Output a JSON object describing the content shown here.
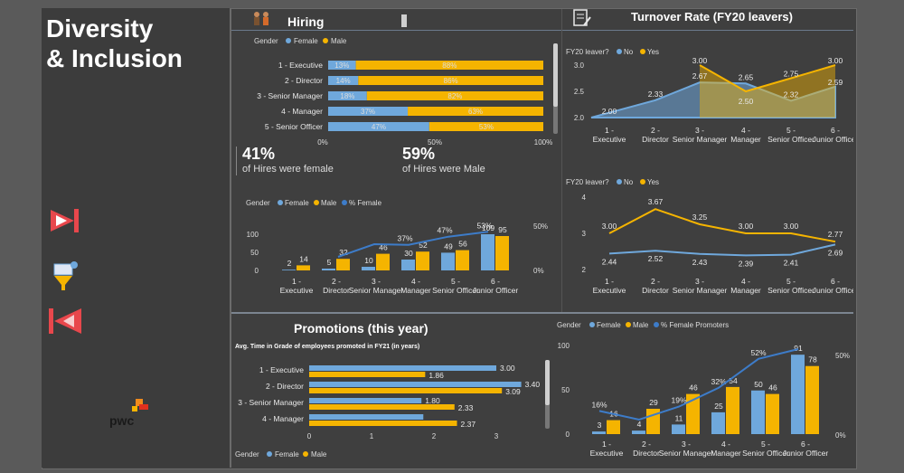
{
  "colors": {
    "female": "#6fa8dc",
    "male": "#f5b400",
    "line": "#3d7cc9",
    "yes": "#f5b400",
    "no": "#6fa8dc"
  },
  "header": {
    "title_line1": "Diversity",
    "title_line2": "& Inclusion"
  },
  "nav": {
    "play_icon": "play-next-icon",
    "filter_icon": "filter-icon",
    "back_icon": "back-icon",
    "logo": "pwc-logo",
    "logo_text": "pwc"
  },
  "hiring": {
    "title": "Hiring",
    "legend_title": "Gender",
    "legend_female": "Female",
    "legend_male": "Male",
    "female_pct_big": "41%",
    "female_pct_text": "of Hires were female",
    "male_pct_big": "59%",
    "male_pct_text": "of Hires were Male",
    "axis_ticks": [
      "0%",
      "50%",
      "100%"
    ]
  },
  "turnover": {
    "title": "Turnover Rate (FY20 leavers)",
    "legend_title": "FY20 leaver?",
    "legend_no": "No",
    "legend_yes": "Yes"
  },
  "promotions": {
    "title": "Promotions (this year)",
    "avg_title": "Avg. Time in Grade of employees promoted in FY21 (in years)",
    "legend_title": "Gender",
    "legend_female": "Female",
    "legend_male": "Male",
    "legend_pct": "% Female Promoters",
    "hires_legend_pct": "% Female"
  },
  "chart_data": [
    {
      "type": "bar",
      "id": "hiring-stacked",
      "categories": [
        "1 - Executive",
        "2 - Director",
        "3 - Senior Manager",
        "4 - Manager",
        "5 - Senior Officer"
      ],
      "series": [
        {
          "name": "Female",
          "values": [
            13,
            14,
            18,
            37,
            47
          ],
          "labels": [
            "13%",
            "14%",
            "18%",
            "37%",
            "47%"
          ]
        },
        {
          "name": "Male",
          "values": [
            88,
            86,
            82,
            63,
            53
          ],
          "labels": [
            "88%",
            "86%",
            "82%",
            "63%",
            "53%"
          ]
        }
      ]
    },
    {
      "type": "area",
      "id": "turnover-area",
      "categories": [
        "1 - Executive",
        "2 - Director",
        "3 - Senior Manager",
        "4 - Manager",
        "5 - Senior Officer",
        "6 - Junior Officer"
      ],
      "series": [
        {
          "name": "No",
          "values": [
            2.0,
            2.33,
            2.67,
            2.65,
            2.32,
            2.59
          ]
        },
        {
          "name": "Yes",
          "values": [
            null,
            null,
            3.0,
            2.5,
            2.75,
            3.0
          ]
        }
      ],
      "yticks": [
        "3.0",
        "2.5",
        "2.0"
      ],
      "ylim": [
        2.0,
        3.0
      ]
    },
    {
      "type": "bar",
      "id": "hires-bar",
      "categories": [
        "1 - Executive",
        "2 - Director",
        "3 - Senior Manager",
        "4 - Manager",
        "5 - Senior Officer",
        "6 - Junior Officer"
      ],
      "series": [
        {
          "name": "Female",
          "values": [
            2,
            5,
            10,
            30,
            49,
            109
          ]
        },
        {
          "name": "Male",
          "values": [
            14,
            32,
            46,
            52,
            56,
            95
          ]
        },
        {
          "name": "% Female",
          "values": [
            null,
            null,
            null,
            37,
            47,
            53
          ],
          "labels": [
            "",
            "",
            "",
            "37%",
            "47%",
            "53%"
          ]
        }
      ],
      "yticks": [
        "100",
        "50",
        "0"
      ],
      "y2ticks": [
        "50%",
        "0%"
      ],
      "ylim": [
        0,
        120
      ]
    },
    {
      "type": "line",
      "id": "turnover-line",
      "categories": [
        "1 - Executive",
        "2 - Director",
        "3 - Senior Manager",
        "4 - Manager",
        "5 - Senior Officer",
        "6 - Junior Officer"
      ],
      "series": [
        {
          "name": "No",
          "values": [
            2.44,
            2.52,
            2.43,
            2.39,
            2.41,
            2.69
          ],
          "labels": [
            "2.44",
            "2.52",
            "2.43",
            "2.39",
            "2.41",
            "2.69"
          ]
        },
        {
          "name": "Yes",
          "values": [
            3.0,
            3.67,
            3.25,
            3.0,
            3.0,
            2.77
          ],
          "labels": [
            "3.00",
            "3.67",
            "3.25",
            "3.00",
            "3.00",
            "2.77"
          ]
        }
      ],
      "yticks": [
        "4",
        "3",
        "2"
      ],
      "ylim": [
        2,
        4
      ]
    },
    {
      "type": "bar",
      "id": "avg-time",
      "categories": [
        "1 - Executive",
        "2 - Director",
        "3 - Senior Manager",
        "4 - Manager"
      ],
      "series": [
        {
          "name": "Female",
          "values": [
            3.0,
            3.4,
            1.8,
            1.83
          ],
          "labels": [
            "3.00",
            "3.40",
            "1.80",
            ""
          ]
        },
        {
          "name": "Male",
          "values": [
            1.86,
            3.09,
            2.33,
            2.37
          ],
          "labels": [
            "1.86",
            "3.09",
            "2.33",
            "2.37"
          ]
        }
      ],
      "xticks": [
        "0",
        "1",
        "2",
        "3"
      ],
      "xlim": [
        0,
        3.6
      ]
    },
    {
      "type": "bar",
      "id": "promotions-bar",
      "categories": [
        "1 - Executive",
        "2 - Director",
        "3 - Senior Manager",
        "4 - Manager",
        "5 - Senior Officer",
        "6 - Junior Officer"
      ],
      "series": [
        {
          "name": "Female",
          "values": [
            3,
            4,
            11,
            25,
            50,
            91
          ]
        },
        {
          "name": "Male",
          "values": [
            16,
            29,
            46,
            54,
            46,
            78
          ]
        },
        {
          "name": "% Female Promoters",
          "values": [
            16,
            null,
            19,
            32,
            52,
            null
          ],
          "labels": [
            "16%",
            "",
            "19%",
            "32%",
            "52%",
            ""
          ]
        }
      ],
      "yticks": [
        "100",
        "50",
        "0"
      ],
      "y2ticks": [
        "50%",
        "0%"
      ],
      "ylim": [
        0,
        100
      ]
    }
  ]
}
